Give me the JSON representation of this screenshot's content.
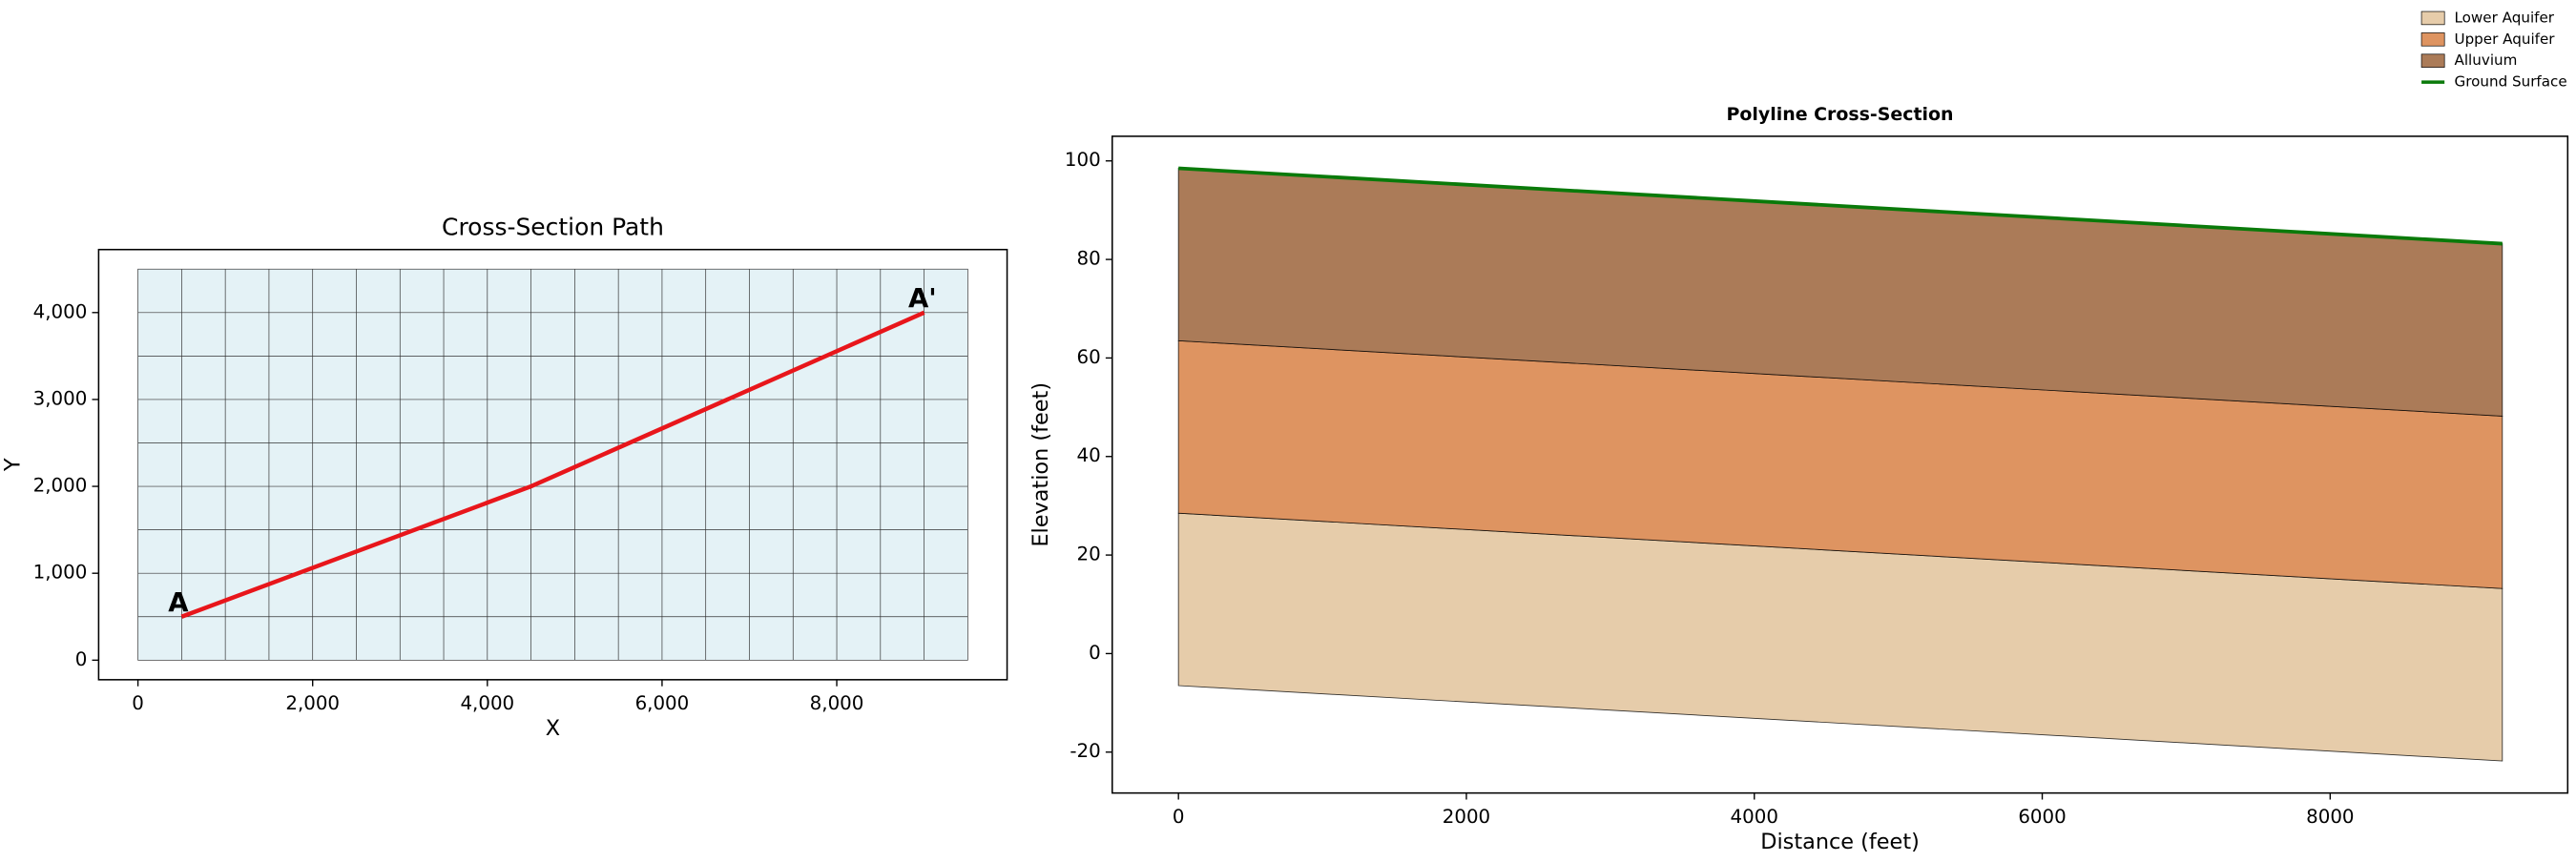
{
  "chart_data": [
    {
      "type": "line",
      "title": "Cross-Section Path",
      "xlabel": "X",
      "ylabel": "Y",
      "x": [
        500,
        4500,
        9000
      ],
      "series": [
        {
          "color": "#e8161b",
          "values": [
            500,
            2000,
            4000
          ]
        }
      ],
      "endpoint_labels": [
        "A",
        "A'"
      ],
      "model_grid": {
        "x": [
          0,
          9500
        ],
        "y": [
          0,
          4500
        ],
        "cell_size": 500,
        "color": "#e4f2f6"
      },
      "xlim": [
        -450,
        9950
      ],
      "ylim": [
        -225,
        4725
      ],
      "xticks": [
        0,
        {
          "value": 2000,
          "label": "2,000"
        },
        {
          "value": 4000,
          "label": "4,000"
        },
        {
          "value": 6000,
          "label": "6,000"
        },
        {
          "value": 8000,
          "label": "8,000"
        }
      ],
      "yticks": [
        0,
        {
          "value": 1000,
          "label": "1,000"
        },
        {
          "value": 2000,
          "label": "2,000"
        },
        {
          "value": 3000,
          "label": "3,000"
        },
        {
          "value": 4000,
          "label": "4,000"
        }
      ]
    },
    {
      "type": "area",
      "title": "Polyline Cross-Section",
      "xlabel": "Distance (feet)",
      "ylabel": "Elevation (feet)",
      "x": [
        0,
        4272,
        9196
      ],
      "series": [
        {
          "name": "Lower Aquifer",
          "style": "fill",
          "color": "#e6ccaa",
          "values": [
            -6.5,
            -13.6,
            -21.8
          ]
        },
        {
          "name": "Upper Aquifer",
          "style": "fill",
          "color": "#de9461",
          "values": [
            28.5,
            21.4,
            13.2
          ]
        },
        {
          "name": "Alluvium",
          "style": "fill",
          "color": "#ab7b58",
          "values": [
            63.5,
            56.4,
            48.2
          ]
        },
        {
          "name": "Ground Surface",
          "style": "line",
          "color": "#0a7a0a",
          "values": [
            98.5,
            91.4,
            83.2
          ]
        }
      ],
      "legend": "upper right",
      "xlim": [
        -460,
        9650
      ],
      "ylim": [
        -28.3,
        105
      ],
      "xticks": [
        0,
        2000,
        4000,
        6000,
        8000
      ],
      "yticks": [
        -20,
        0,
        20,
        40,
        60,
        80,
        100
      ]
    }
  ]
}
